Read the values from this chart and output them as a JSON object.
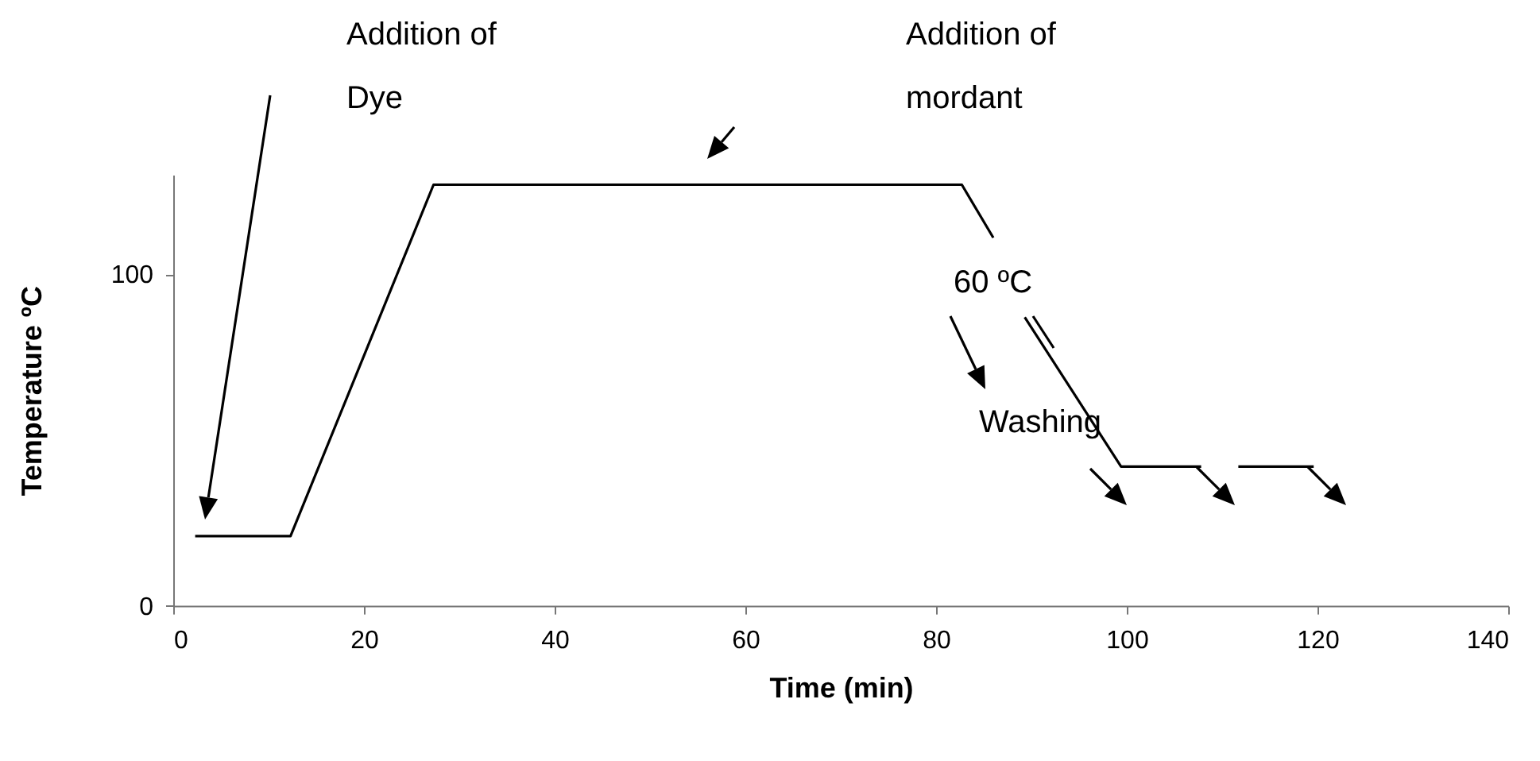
{
  "chart_data": {
    "type": "line",
    "xlabel": "Time (min)",
    "ylabel": "Temperature ºC",
    "x": [
      2.3,
      12.3,
      27.3,
      82.7,
      86,
      88,
      89.3,
      99.4,
      107.8,
      109.5,
      111.7,
      119.6
    ],
    "series": [
      {
        "color": "#000000",
        "values": [
          21,
          21,
          127,
          127,
          111,
          null,
          87,
          42,
          42,
          null,
          42,
          42
        ]
      }
    ],
    "xlim": [
      0,
      140
    ],
    "xticks": [
      0,
      20,
      40,
      60,
      80,
      100,
      120,
      140
    ],
    "ylim": [
      0,
      130
    ],
    "yticks": [
      0,
      100
    ],
    "grid": false,
    "legend": false,
    "marker": "none",
    "line_style": "solid",
    "annotations": [
      "Addition of\nDye",
      "Addition of\nmordant",
      "60  ºC",
      "Washing"
    ]
  }
}
